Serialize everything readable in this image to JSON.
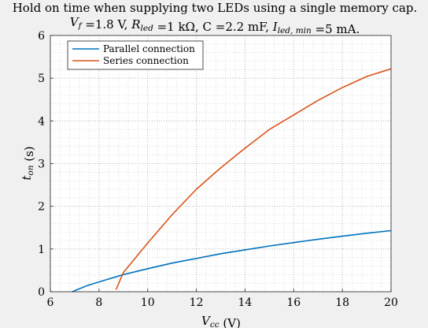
{
  "chart_data": {
    "type": "line",
    "title_lines": [
      "Hold on time when supplying two LEDs using a single memory cap.",
      "V_f =1.8 V, R_led =1 kΩ, C =2.2 mF, I_led, min =5 mA."
    ],
    "xlabel": "V_cc (V)",
    "ylabel": "t_on (s)",
    "xlim": [
      6,
      20
    ],
    "ylim": [
      0,
      6
    ],
    "x_ticks": [
      6,
      8,
      10,
      12,
      14,
      16,
      18,
      20
    ],
    "y_ticks": [
      0,
      1,
      2,
      3,
      4,
      5,
      6
    ],
    "grid": "on (major and minor, dotted)",
    "legend_position": "top-left",
    "series": [
      {
        "name": "Parallel connection",
        "color": "#0072BD",
        "x": [
          6.9,
          7.5,
          8,
          9,
          10,
          11,
          12,
          13,
          14,
          15,
          16,
          17,
          18,
          19,
          20
        ],
        "y": [
          0.0,
          0.14,
          0.23,
          0.4,
          0.54,
          0.67,
          0.78,
          0.89,
          0.98,
          1.07,
          1.15,
          1.23,
          1.3,
          1.37,
          1.43
        ]
      },
      {
        "name": "Series connection",
        "color": "#D95319",
        "x": [
          8.7,
          9,
          10,
          11,
          12,
          13,
          14,
          15,
          16,
          17,
          18,
          19,
          20
        ],
        "y": [
          0.05,
          0.45,
          1.14,
          1.8,
          2.4,
          2.9,
          3.36,
          3.8,
          4.14,
          4.48,
          4.78,
          5.04,
          5.22
        ]
      }
    ]
  }
}
